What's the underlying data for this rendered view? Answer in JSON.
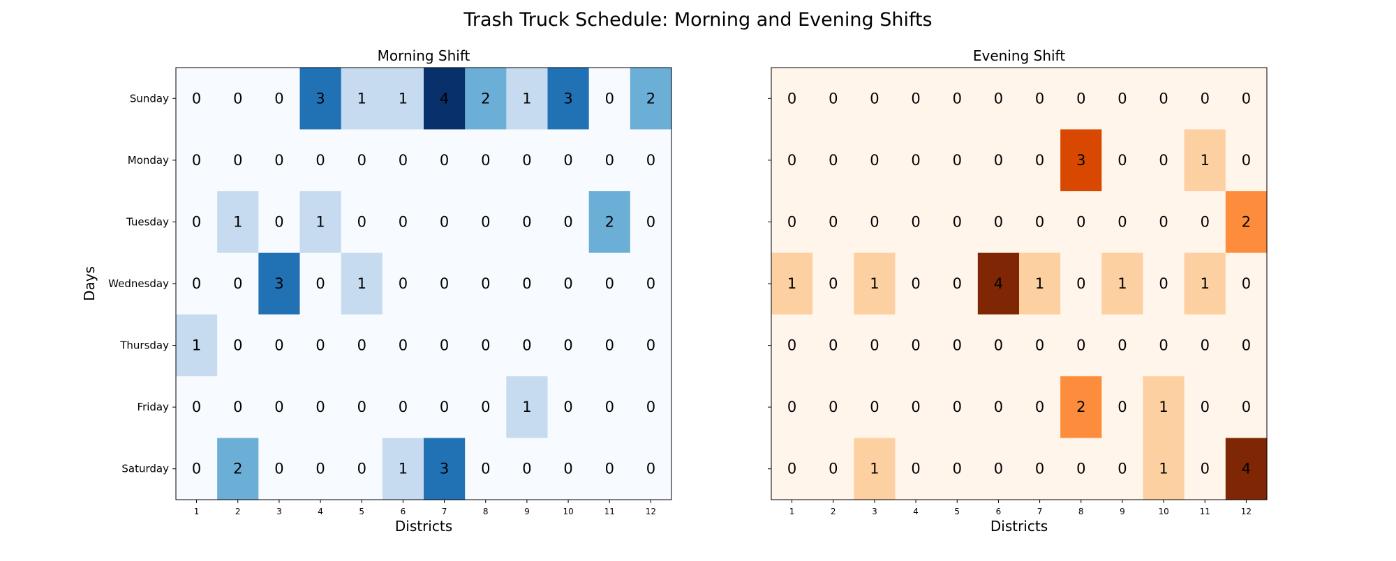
{
  "chart_data": {
    "type": "heatmap",
    "title": "Trash Truck Schedule: Morning and Evening Shifts",
    "days": [
      "Sunday",
      "Monday",
      "Tuesday",
      "Wednesday",
      "Thursday",
      "Friday",
      "Saturday"
    ],
    "districts": [
      "1",
      "2",
      "3",
      "4",
      "5",
      "6",
      "7",
      "8",
      "9",
      "10",
      "11",
      "12"
    ],
    "panels": [
      {
        "title": "Morning Shift",
        "xlabel": "Districts",
        "ylabel": "Days",
        "colormap": "Blues",
        "color_range": [
          0,
          4
        ],
        "values": [
          [
            0,
            0,
            0,
            3,
            1,
            1,
            4,
            2,
            1,
            3,
            0,
            2
          ],
          [
            0,
            0,
            0,
            0,
            0,
            0,
            0,
            0,
            0,
            0,
            0,
            0
          ],
          [
            0,
            1,
            0,
            1,
            0,
            0,
            0,
            0,
            0,
            0,
            2,
            0
          ],
          [
            0,
            0,
            3,
            0,
            1,
            0,
            0,
            0,
            0,
            0,
            0,
            0
          ],
          [
            1,
            0,
            0,
            0,
            0,
            0,
            0,
            0,
            0,
            0,
            0,
            0
          ],
          [
            0,
            0,
            0,
            0,
            0,
            0,
            0,
            0,
            1,
            0,
            0,
            0
          ],
          [
            0,
            2,
            0,
            0,
            0,
            1,
            3,
            0,
            0,
            0,
            0,
            0
          ]
        ]
      },
      {
        "title": "Evening Shift",
        "xlabel": "Districts",
        "ylabel": "",
        "colormap": "Oranges",
        "color_range": [
          0,
          4
        ],
        "values": [
          [
            0,
            0,
            0,
            0,
            0,
            0,
            0,
            0,
            0,
            0,
            0,
            0
          ],
          [
            0,
            0,
            0,
            0,
            0,
            0,
            0,
            3,
            0,
            0,
            1,
            0
          ],
          [
            0,
            0,
            0,
            0,
            0,
            0,
            0,
            0,
            0,
            0,
            0,
            2
          ],
          [
            1,
            0,
            1,
            0,
            0,
            4,
            1,
            0,
            1,
            0,
            1,
            0
          ],
          [
            0,
            0,
            0,
            0,
            0,
            0,
            0,
            0,
            0,
            0,
            0,
            0
          ],
          [
            0,
            0,
            0,
            0,
            0,
            0,
            0,
            2,
            0,
            1,
            0,
            0
          ],
          [
            0,
            0,
            1,
            0,
            0,
            0,
            0,
            0,
            0,
            1,
            0,
            4
          ]
        ]
      }
    ],
    "palettes": {
      "Blues": [
        "#f7fbff",
        "#c6dbef",
        "#6baed6",
        "#2171b5",
        "#08306b"
      ],
      "Oranges": [
        "#fff5eb",
        "#fdd0a2",
        "#fd8d3c",
        "#d94801",
        "#7f2704"
      ]
    }
  }
}
